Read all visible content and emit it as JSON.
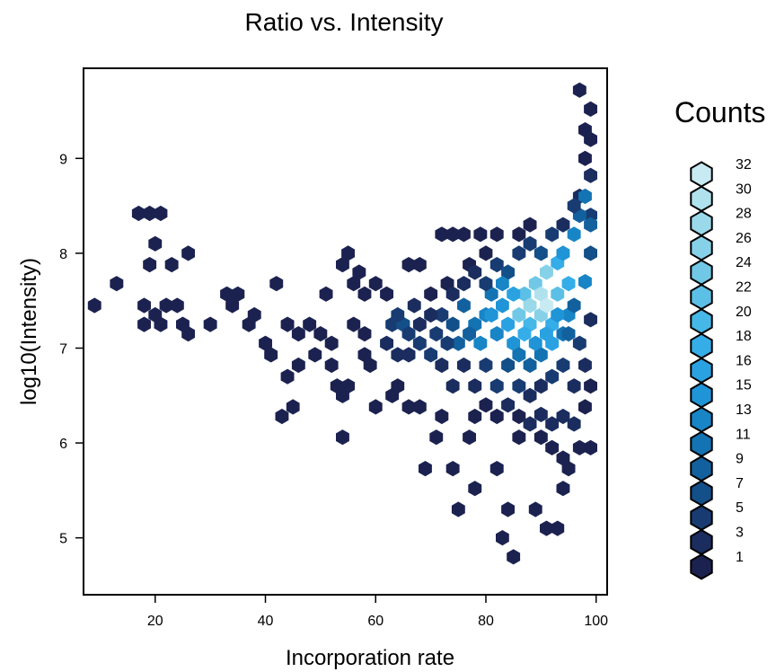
{
  "chart_data": {
    "type": "hexbin",
    "title": "Ratio vs. Intensity",
    "xlabel": "Incorporation rate",
    "ylabel": "log10(Intensity)",
    "xlim": [
      7,
      102
    ],
    "ylim": [
      4.4,
      9.95
    ],
    "xticks": [
      20,
      40,
      60,
      80,
      100
    ],
    "yticks": [
      5,
      6,
      7,
      8,
      9
    ],
    "hexes": [
      [
        9,
        7.45,
        1
      ],
      [
        13,
        7.68,
        1
      ],
      [
        17,
        8.42,
        1
      ],
      [
        19,
        8.42,
        1
      ],
      [
        21,
        8.42,
        1
      ],
      [
        20,
        8.1,
        1
      ],
      [
        19,
        7.88,
        1
      ],
      [
        23,
        7.88,
        1
      ],
      [
        26,
        8.0,
        1
      ],
      [
        18,
        7.45,
        1
      ],
      [
        20,
        7.35,
        1
      ],
      [
        18,
        7.25,
        1
      ],
      [
        21,
        7.25,
        1
      ],
      [
        22,
        7.45,
        1
      ],
      [
        24,
        7.45,
        1
      ],
      [
        25,
        7.25,
        1
      ],
      [
        26,
        7.15,
        1
      ],
      [
        30,
        7.25,
        1
      ],
      [
        33,
        7.57,
        1
      ],
      [
        35,
        7.57,
        1
      ],
      [
        34,
        7.45,
        1
      ],
      [
        37,
        7.25,
        1
      ],
      [
        38,
        7.35,
        1
      ],
      [
        40,
        7.05,
        1
      ],
      [
        41,
        6.93,
        1
      ],
      [
        42,
        7.68,
        1
      ],
      [
        43,
        6.28,
        1
      ],
      [
        45,
        6.38,
        1
      ],
      [
        44,
        6.7,
        1
      ],
      [
        46,
        6.82,
        1
      ],
      [
        44,
        7.25,
        1
      ],
      [
        46,
        7.15,
        1
      ],
      [
        48,
        7.25,
        1
      ],
      [
        50,
        7.15,
        1
      ],
      [
        49,
        6.93,
        1
      ],
      [
        51,
        7.57,
        1
      ],
      [
        52,
        7.05,
        1
      ],
      [
        52,
        6.82,
        1
      ],
      [
        53,
        6.6,
        1
      ],
      [
        54,
        6.5,
        1
      ],
      [
        55,
        6.6,
        1
      ],
      [
        54,
        6.06,
        1
      ],
      [
        54,
        7.88,
        1
      ],
      [
        55,
        8.0,
        1
      ],
      [
        57,
        7.8,
        1
      ],
      [
        56,
        7.68,
        1
      ],
      [
        58,
        7.57,
        1
      ],
      [
        56,
        7.25,
        1
      ],
      [
        58,
        7.15,
        1
      ],
      [
        58,
        6.93,
        1
      ],
      [
        59,
        6.82,
        1
      ],
      [
        60,
        6.38,
        1
      ],
      [
        60,
        7.68,
        1
      ],
      [
        62,
        7.57,
        1
      ],
      [
        63,
        6.5,
        1
      ],
      [
        64,
        6.6,
        1
      ],
      [
        66,
        6.38,
        1
      ],
      [
        66,
        7.88,
        1
      ],
      [
        67,
        7.45,
        2
      ],
      [
        68,
        6.38,
        1
      ],
      [
        68,
        7.88,
        1
      ],
      [
        69,
        5.73,
        1
      ],
      [
        70,
        7.57,
        1
      ],
      [
        71,
        6.06,
        1
      ],
      [
        72,
        8.2,
        1
      ],
      [
        72,
        6.28,
        1
      ],
      [
        74,
        8.2,
        1
      ],
      [
        73,
        7.68,
        1
      ],
      [
        74,
        5.73,
        1
      ],
      [
        75,
        5.3,
        1
      ],
      [
        76,
        8.2,
        1
      ],
      [
        77,
        6.06,
        1
      ],
      [
        77,
        7.88,
        1
      ],
      [
        78,
        5.52,
        1
      ],
      [
        79,
        8.2,
        1
      ],
      [
        80,
        8.0,
        1
      ],
      [
        82,
        8.2,
        1
      ],
      [
        82,
        5.73,
        1
      ],
      [
        83,
        5.0,
        1
      ],
      [
        84,
        5.3,
        1
      ],
      [
        85,
        4.8,
        1
      ],
      [
        86,
        8.2,
        1
      ],
      [
        88,
        8.3,
        1
      ],
      [
        89,
        5.3,
        1
      ],
      [
        91,
        5.1,
        1
      ],
      [
        93,
        5.1,
        1
      ],
      [
        94,
        5.52,
        1
      ],
      [
        95,
        5.73,
        1
      ],
      [
        97,
        5.95,
        1
      ],
      [
        99,
        5.95,
        1
      ],
      [
        97,
        9.72,
        1
      ],
      [
        99,
        9.52,
        1
      ],
      [
        98,
        9.3,
        1
      ],
      [
        99,
        9.2,
        1
      ],
      [
        98,
        9.0,
        1
      ],
      [
        99,
        8.82,
        2
      ],
      [
        97,
        8.6,
        3
      ],
      [
        99,
        8.4,
        4
      ],
      [
        62,
        7.05,
        3
      ],
      [
        64,
        6.93,
        2
      ],
      [
        63,
        7.25,
        5
      ],
      [
        65,
        7.25,
        6
      ],
      [
        64,
        7.35,
        4
      ],
      [
        66,
        7.15,
        4
      ],
      [
        68,
        7.05,
        5
      ],
      [
        70,
        6.93,
        4
      ],
      [
        71,
        7.15,
        5
      ],
      [
        72,
        7.35,
        5
      ],
      [
        74,
        7.25,
        7
      ],
      [
        75,
        7.05,
        8
      ],
      [
        76,
        7.45,
        9
      ],
      [
        78,
        7.25,
        11
      ],
      [
        79,
        7.05,
        13
      ],
      [
        80,
        7.35,
        13
      ],
      [
        81,
        7.57,
        11
      ],
      [
        82,
        7.15,
        13
      ],
      [
        83,
        7.45,
        15
      ],
      [
        84,
        7.25,
        16
      ],
      [
        85,
        7.05,
        15
      ],
      [
        86,
        7.35,
        24
      ],
      [
        87,
        7.57,
        22
      ],
      [
        88,
        7.45,
        28
      ],
      [
        88,
        7.25,
        20
      ],
      [
        89,
        7.68,
        24
      ],
      [
        90,
        7.35,
        26
      ],
      [
        90,
        7.57,
        30
      ],
      [
        91,
        7.45,
        32
      ],
      [
        91,
        7.8,
        26
      ],
      [
        92,
        7.25,
        18
      ],
      [
        93,
        7.57,
        22
      ],
      [
        93,
        7.9,
        18
      ],
      [
        94,
        8.0,
        15
      ],
      [
        95,
        7.68,
        18
      ],
      [
        96,
        8.2,
        13
      ],
      [
        97,
        8.4,
        9
      ],
      [
        98,
        8.6,
        11
      ],
      [
        95,
        7.35,
        13
      ],
      [
        92,
        7.05,
        16
      ],
      [
        94,
        7.15,
        11
      ],
      [
        96,
        7.45,
        9
      ],
      [
        97,
        7.05,
        5
      ],
      [
        98,
        7.7,
        13
      ],
      [
        99,
        8.0,
        7
      ],
      [
        99,
        8.3,
        9
      ],
      [
        86,
        6.93,
        11
      ],
      [
        88,
        6.82,
        9
      ],
      [
        90,
        6.93,
        11
      ],
      [
        84,
        6.82,
        7
      ],
      [
        80,
        6.82,
        5
      ],
      [
        82,
        6.6,
        4
      ],
      [
        86,
        6.6,
        5
      ],
      [
        88,
        6.5,
        3
      ],
      [
        90,
        6.6,
        3
      ],
      [
        92,
        6.7,
        4
      ],
      [
        94,
        6.82,
        5
      ],
      [
        96,
        6.6,
        3
      ],
      [
        98,
        6.82,
        2
      ],
      [
        78,
        6.6,
        2
      ],
      [
        76,
        6.82,
        3
      ],
      [
        74,
        6.6,
        2
      ],
      [
        72,
        6.82,
        3
      ],
      [
        80,
        7.68,
        5
      ],
      [
        78,
        7.8,
        3
      ],
      [
        82,
        7.88,
        4
      ],
      [
        84,
        7.8,
        7
      ],
      [
        86,
        8.0,
        5
      ],
      [
        88,
        8.1,
        4
      ],
      [
        90,
        8.0,
        7
      ],
      [
        92,
        8.2,
        5
      ],
      [
        94,
        8.3,
        3
      ],
      [
        96,
        8.5,
        4
      ],
      [
        76,
        7.68,
        3
      ],
      [
        74,
        7.57,
        2
      ],
      [
        70,
        7.35,
        3
      ],
      [
        68,
        7.25,
        2
      ],
      [
        66,
        6.93,
        2
      ],
      [
        84,
        6.4,
        2
      ],
      [
        86,
        6.28,
        1
      ],
      [
        88,
        6.2,
        2
      ],
      [
        90,
        6.3,
        2
      ],
      [
        92,
        6.2,
        3
      ],
      [
        94,
        6.28,
        3
      ],
      [
        96,
        6.2,
        2
      ],
      [
        98,
        6.38,
        1
      ],
      [
        90,
        6.06,
        1
      ],
      [
        92,
        5.95,
        1
      ],
      [
        94,
        5.84,
        1
      ],
      [
        86,
        6.06,
        1
      ],
      [
        82,
        6.28,
        1
      ],
      [
        80,
        6.4,
        1
      ],
      [
        78,
        6.28,
        1
      ],
      [
        99,
        7.3,
        2
      ],
      [
        99,
        6.6,
        1
      ],
      [
        73,
        7.05,
        4
      ],
      [
        77,
        7.15,
        9
      ],
      [
        81,
        7.35,
        15
      ],
      [
        83,
        7.68,
        13
      ],
      [
        85,
        7.57,
        16
      ],
      [
        87,
        7.15,
        18
      ],
      [
        89,
        7.05,
        15
      ],
      [
        91,
        7.15,
        16
      ],
      [
        93,
        7.35,
        15
      ],
      [
        95,
        7.15,
        9
      ]
    ],
    "legend": {
      "title": "Counts",
      "values": [
        "32",
        "30",
        "28",
        "26",
        "24",
        "22",
        "20",
        "18",
        "16",
        "15",
        "13",
        "11",
        "9",
        "7",
        "5",
        "3",
        "1"
      ],
      "colors": [
        "#c8eaf2",
        "#b0e2ee",
        "#9ad9ea",
        "#86d1e8",
        "#70c8e6",
        "#5cc0e6",
        "#46b8e8",
        "#35ade8",
        "#2aa2e2",
        "#1f94d6",
        "#1885c6",
        "#1473b2",
        "#12619e",
        "#134f88",
        "#183c72",
        "#1b2d5e",
        "#1c2250"
      ]
    }
  }
}
